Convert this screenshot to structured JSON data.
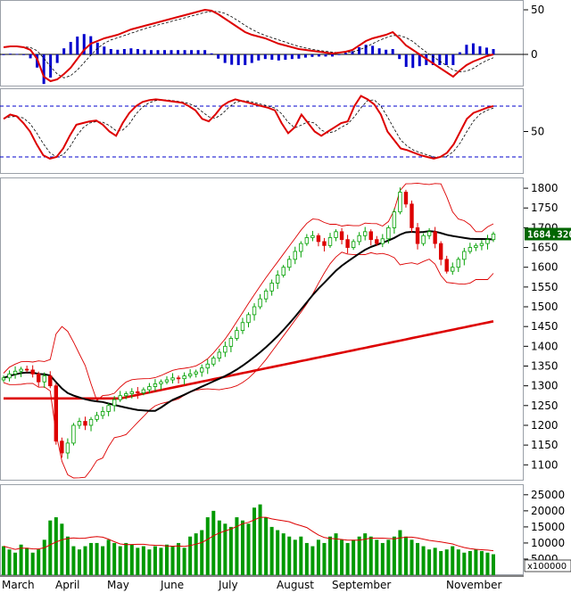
{
  "chart_data": {
    "type": "candlestick",
    "title": "",
    "months": [
      "March",
      "April",
      "May",
      "June",
      "July",
      "August",
      "September",
      "November"
    ],
    "last_price_label": "1684.320",
    "volume_unit": "x100000",
    "macd_panel": {
      "yticks": [
        "50",
        "0"
      ],
      "ylim": [
        -35,
        60
      ]
    },
    "rsi_panel": {
      "yticks": [
        "50"
      ],
      "ylim": [
        0,
        100
      ],
      "upper_ref": 80,
      "lower_ref": 20
    },
    "price_panel": {
      "yticks": [
        "1800",
        "1750",
        "1700",
        "1650",
        "1600",
        "1550",
        "1500",
        "1450",
        "1400",
        "1350",
        "1300",
        "1250",
        "1200",
        "1150",
        "1100"
      ],
      "ylim": [
        1060,
        1825
      ]
    },
    "volume_panel": {
      "yticks": [
        "25000",
        "20000",
        "15000",
        "10000",
        "5000"
      ],
      "ylim": [
        0,
        28000
      ]
    },
    "colors": {
      "up_candle": "#00a000",
      "down_candle": "#dd0000",
      "ma_short": "#000000",
      "ma_long": "#dd0000",
      "bollinger": "#dd0000",
      "volume_bar": "#009900",
      "macd_hist": "#0000cc",
      "ref_line": "#0000cc",
      "price_tag": "#006600"
    },
    "closes": [
      1320,
      1330,
      1337,
      1342,
      1340,
      1330,
      1310,
      1325,
      1300,
      1160,
      1130,
      1155,
      1200,
      1210,
      1200,
      1215,
      1225,
      1235,
      1250,
      1265,
      1275,
      1280,
      1285,
      1282,
      1290,
      1298,
      1305,
      1310,
      1315,
      1320,
      1318,
      1325,
      1330,
      1335,
      1345,
      1355,
      1370,
      1385,
      1400,
      1420,
      1440,
      1460,
      1480,
      1500,
      1520,
      1540,
      1560,
      1580,
      1600,
      1620,
      1640,
      1660,
      1675,
      1680,
      1665,
      1655,
      1675,
      1690,
      1670,
      1650,
      1665,
      1680,
      1690,
      1670,
      1660,
      1672,
      1700,
      1740,
      1790,
      1760,
      1700,
      1660,
      1680,
      1690,
      1660,
      1620,
      1590,
      1600,
      1620,
      1640,
      1650,
      1655,
      1660,
      1670,
      1684
    ],
    "volumes": [
      9000,
      8000,
      7000,
      9500,
      8500,
      7000,
      8000,
      11000,
      17000,
      18000,
      16000,
      12000,
      9000,
      8000,
      9000,
      10000,
      10000,
      9000,
      11000,
      10000,
      9000,
      10000,
      9500,
      8500,
      9000,
      8000,
      9000,
      8500,
      9500,
      9000,
      10000,
      8500,
      12000,
      13000,
      14000,
      18000,
      20000,
      17000,
      16000,
      15000,
      18000,
      17000,
      16000,
      21000,
      22000,
      18000,
      15000,
      14000,
      13000,
      12000,
      11000,
      12000,
      10000,
      9000,
      11000,
      10000,
      12000,
      13000,
      11000,
      10000,
      11000,
      12000,
      13000,
      12000,
      11000,
      10000,
      11000,
      12000,
      14000,
      12000,
      11000,
      10000,
      9000,
      8000,
      8500,
      7500,
      8000,
      9000,
      8000,
      7000,
      7500,
      8000,
      7500,
      7000,
      6500
    ],
    "macd_line": [
      8,
      9,
      9,
      8,
      5,
      -5,
      -25,
      -30,
      -28,
      -22,
      -15,
      -5,
      5,
      12,
      15,
      18,
      20,
      22,
      25,
      28,
      30,
      32,
      34,
      36,
      38,
      40,
      42,
      44,
      46,
      48,
      50,
      49,
      45,
      40,
      35,
      30,
      25,
      22,
      20,
      18,
      15,
      12,
      10,
      8,
      6,
      5,
      4,
      3,
      2,
      1,
      2,
      3,
      5,
      10,
      15,
      18,
      20,
      22,
      25,
      18,
      10,
      5,
      0,
      -5,
      -10,
      -15,
      -20,
      -25,
      -18,
      -12,
      -8,
      -5,
      -2,
      0
    ],
    "rsi_line": [
      65,
      70,
      68,
      60,
      50,
      35,
      22,
      18,
      20,
      30,
      45,
      58,
      60,
      62,
      63,
      58,
      50,
      45,
      60,
      72,
      80,
      85,
      87,
      88,
      87,
      86,
      85,
      84,
      80,
      75,
      65,
      62,
      70,
      80,
      85,
      88,
      86,
      84,
      82,
      80,
      78,
      75,
      60,
      48,
      55,
      70,
      60,
      50,
      45,
      50,
      55,
      60,
      62,
      80,
      92,
      88,
      82,
      70,
      50,
      40,
      30,
      28,
      25,
      22,
      20,
      18,
      20,
      25,
      35,
      50,
      65,
      72,
      75,
      78,
      80
    ]
  }
}
